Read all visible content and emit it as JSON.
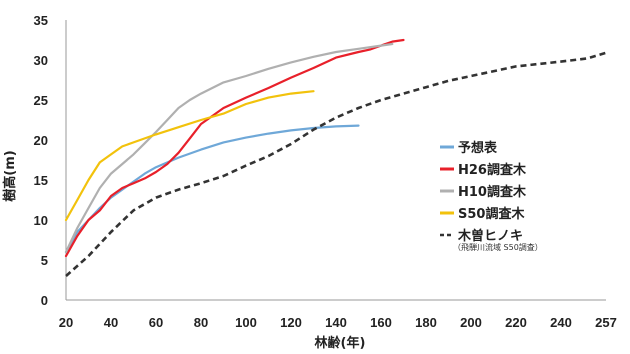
{
  "chart_data": {
    "type": "line",
    "ylabel": "樹高(m)",
    "xlabel": "林齢(年)",
    "x_ticks": [
      "20",
      "40",
      "60",
      "80",
      "100",
      "120",
      "140",
      "160",
      "180",
      "200",
      "220",
      "240",
      "257"
    ],
    "y_ticks": [
      "0",
      "5",
      "10",
      "15",
      "20",
      "25",
      "30",
      "35"
    ],
    "xlim": [
      20,
      257
    ],
    "ylim": [
      0,
      35
    ],
    "grid": false,
    "legend_position": "right",
    "series": [
      {
        "name": "予想表",
        "color": "#6fa8d8",
        "dash": "solid",
        "x": [
          20,
          25,
          30,
          35,
          40,
          45,
          50,
          55,
          60,
          70,
          80,
          90,
          100,
          110,
          120,
          130,
          140,
          150
        ],
        "y": [
          6.0,
          8.5,
          10.0,
          11.5,
          12.8,
          13.8,
          14.8,
          15.8,
          16.6,
          17.8,
          18.8,
          19.7,
          20.3,
          20.8,
          21.2,
          21.5,
          21.7,
          21.8
        ]
      },
      {
        "name": "H26調査木",
        "color": "#e8202a",
        "dash": "solid",
        "x": [
          20,
          25,
          30,
          35,
          40,
          45,
          50,
          55,
          60,
          65,
          70,
          75,
          80,
          85,
          90,
          100,
          110,
          120,
          130,
          140,
          150,
          155,
          160,
          165,
          170
        ],
        "y": [
          5.5,
          8.0,
          10.0,
          11.2,
          13.0,
          14.0,
          14.6,
          15.2,
          16.0,
          17.0,
          18.4,
          20.2,
          22.0,
          23.0,
          24.0,
          25.3,
          26.5,
          27.8,
          29.0,
          30.3,
          31.0,
          31.3,
          31.8,
          32.3,
          32.5
        ]
      },
      {
        "name": "H10調査木",
        "color": "#b0b0b0",
        "dash": "solid",
        "x": [
          20,
          25,
          30,
          35,
          40,
          45,
          50,
          55,
          60,
          65,
          70,
          75,
          80,
          90,
          100,
          110,
          120,
          130,
          140,
          150,
          160,
          165
        ],
        "y": [
          6.0,
          9.0,
          11.5,
          14.0,
          15.8,
          17.0,
          18.2,
          19.6,
          21.0,
          22.5,
          24.0,
          25.0,
          25.8,
          27.2,
          28.0,
          28.9,
          29.7,
          30.4,
          31.0,
          31.4,
          31.8,
          32.0
        ]
      },
      {
        "name": "S50調査木",
        "color": "#f2c20c",
        "dash": "solid",
        "x": [
          20,
          25,
          30,
          35,
          40,
          45,
          50,
          60,
          70,
          80,
          90,
          100,
          110,
          120,
          130
        ],
        "y": [
          10.0,
          12.5,
          15.0,
          17.2,
          18.2,
          19.2,
          19.7,
          20.7,
          21.6,
          22.5,
          23.3,
          24.5,
          25.3,
          25.8,
          26.1
        ]
      },
      {
        "name": "木曽ヒノキ",
        "color": "#333333",
        "dash": "dashed",
        "x": [
          20,
          30,
          40,
          50,
          60,
          70,
          80,
          90,
          100,
          110,
          120,
          130,
          140,
          150,
          160,
          170,
          180,
          190,
          200,
          220,
          240,
          250,
          257
        ],
        "y": [
          3.0,
          5.5,
          8.5,
          11.2,
          12.8,
          13.8,
          14.6,
          15.5,
          16.8,
          18.0,
          19.5,
          21.3,
          22.8,
          24.0,
          25.0,
          25.8,
          26.6,
          27.4,
          28.0,
          29.2,
          29.8,
          30.2,
          30.9
        ]
      }
    ],
    "legend_note": "（飛騨川流域 S50調査）"
  }
}
